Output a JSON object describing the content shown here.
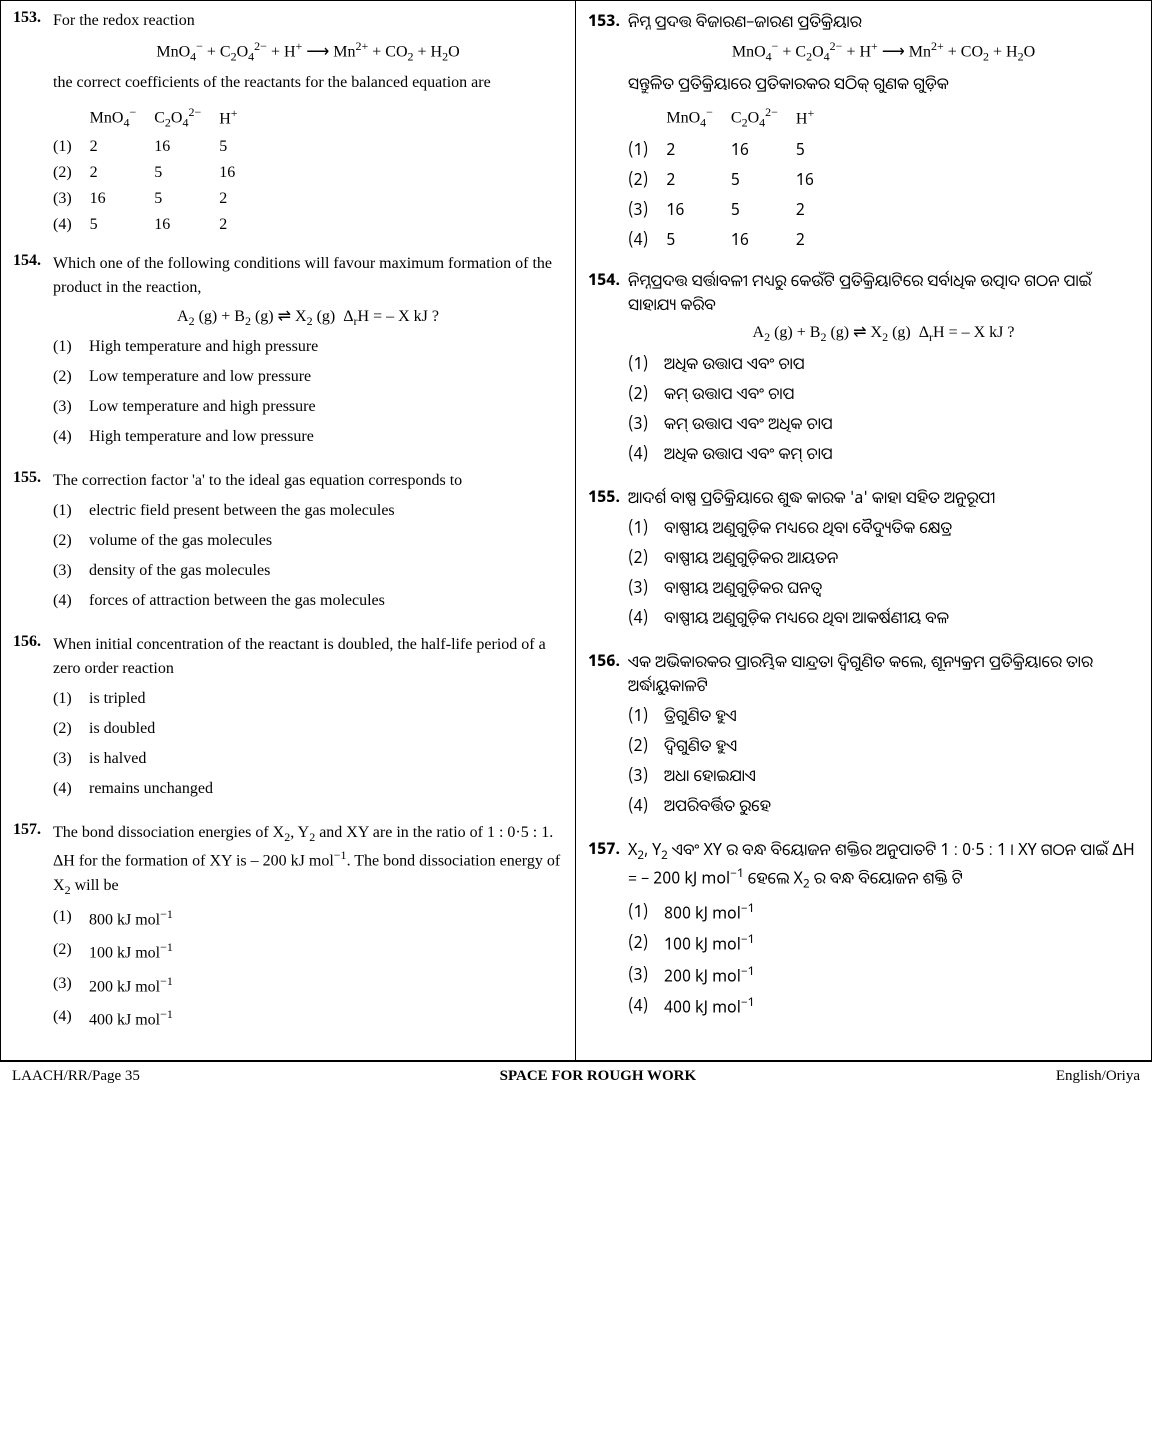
{
  "footer": {
    "left": "LAACH/RR/Page 35",
    "center": "SPACE FOR ROUGH WORK",
    "right": "English/Oriya"
  },
  "left": {
    "q153": {
      "num": "153.",
      "text1": "For the redox reaction",
      "eqn": "MnO<sub>4</sub><sup>−</sup> + C<sub>2</sub>O<sub>4</sub><sup>2−</sup> + H<sup>+</sup> ⟶ Mn<sup>2+</sup> + CO<sub>2</sub> + H<sub>2</sub>O",
      "text2": "the correct coefficients of the reactants for the balanced equation are",
      "headers": [
        "",
        "MnO<sub>4</sub><sup>−</sup>",
        "C<sub>2</sub>O<sub>4</sub><sup>2−</sup>",
        "H<sup>+</sup>"
      ],
      "rows": [
        [
          "(1)",
          "2",
          "16",
          "5"
        ],
        [
          "(2)",
          "2",
          "5",
          "16"
        ],
        [
          "(3)",
          "16",
          "5",
          "2"
        ],
        [
          "(4)",
          "5",
          "16",
          "2"
        ]
      ]
    },
    "q154": {
      "num": "154.",
      "text": "Which one of the following conditions will favour maximum formation of the product in the reaction,",
      "eqn": "A<sub>2</sub> (g) + B<sub>2</sub> (g) ⇌ X<sub>2</sub> (g)&nbsp;&nbsp;Δ<sub>r</sub>H = – X kJ ?",
      "opts": [
        {
          "n": "(1)",
          "t": "High temperature and high pressure"
        },
        {
          "n": "(2)",
          "t": "Low temperature and low pressure"
        },
        {
          "n": "(3)",
          "t": "Low temperature and high pressure"
        },
        {
          "n": "(4)",
          "t": "High temperature and low pressure"
        }
      ]
    },
    "q155": {
      "num": "155.",
      "text": "The correction factor 'a' to the ideal gas equation corresponds to",
      "opts": [
        {
          "n": "(1)",
          "t": "electric field present between the gas molecules"
        },
        {
          "n": "(2)",
          "t": "volume of the gas molecules"
        },
        {
          "n": "(3)",
          "t": "density of the gas molecules"
        },
        {
          "n": "(4)",
          "t": "forces of attraction between the gas molecules"
        }
      ]
    },
    "q156": {
      "num": "156.",
      "text": "When initial concentration of the reactant is doubled, the half-life period of a zero order reaction",
      "opts": [
        {
          "n": "(1)",
          "t": "is tripled"
        },
        {
          "n": "(2)",
          "t": "is doubled"
        },
        {
          "n": "(3)",
          "t": "is halved"
        },
        {
          "n": "(4)",
          "t": "remains unchanged"
        }
      ]
    },
    "q157": {
      "num": "157.",
      "text": "The bond dissociation energies of X<sub>2</sub>, Y<sub>2</sub> and XY are in the ratio of 1 : 0·5 : 1. ΔH for the formation of XY is – 200 kJ mol<sup>−1</sup>. The bond dissociation energy of X<sub>2</sub> will be",
      "opts": [
        {
          "n": "(1)",
          "t": "800 kJ mol<sup>−1</sup>"
        },
        {
          "n": "(2)",
          "t": "100 kJ mol<sup>−1</sup>"
        },
        {
          "n": "(3)",
          "t": "200 kJ mol<sup>−1</sup>"
        },
        {
          "n": "(4)",
          "t": "400 kJ mol<sup>−1</sup>"
        }
      ]
    }
  },
  "right": {
    "q153": {
      "num": "153.",
      "text1": "ନିମ୍ନ ପ୍ରଦତ୍ତ ବିଜାରଣ–ଜାରଣ ପ୍ରତିକ୍ରିୟାର",
      "eqn": "MnO<sub>4</sub><sup>−</sup> + C<sub>2</sub>O<sub>4</sub><sup>2−</sup> + H<sup>+</sup> ⟶ Mn<sup>2+</sup> + CO<sub>2</sub> + H<sub>2</sub>O",
      "text2": "ସନ୍ତୁଳିତ ପ୍ରତିକ୍ରିୟାରେ ପ୍ରତିକାରକର ସଠିକ୍ ଗୁଣକ ଗୁଡ଼ିକ",
      "headers": [
        "",
        "MnO<sub>4</sub><sup>−</sup>",
        "C<sub>2</sub>O<sub>4</sub><sup>2−</sup>",
        "H<sup>+</sup>"
      ],
      "rows": [
        [
          "(1)",
          "2",
          "16",
          "5"
        ],
        [
          "(2)",
          "2",
          "5",
          "16"
        ],
        [
          "(3)",
          "16",
          "5",
          "2"
        ],
        [
          "(4)",
          "5",
          "16",
          "2"
        ]
      ]
    },
    "q154": {
      "num": "154.",
      "text": "ନିମ୍ନପ୍ରଦତ୍ତ ସର୍ତ୍ତାବଳୀ ମଧ୍ୟରୁ କେଉଁଟି ପ୍ରତିକ୍ରିୟାଟିରେ ସର୍ବାଧିକ ଉତ୍ପାଦ ଗଠନ ପାଇଁ ସାହାଯ୍ୟ କରିବ",
      "eqn": "A<sub>2</sub> (g) + B<sub>2</sub> (g) ⇌ X<sub>2</sub> (g)&nbsp;&nbsp;Δ<sub>r</sub>H = – X kJ ?",
      "opts": [
        {
          "n": "(1)",
          "t": "ଅଧିକ ଉତ୍ତାପ ଏବଂ ଚାପ"
        },
        {
          "n": "(2)",
          "t": "କମ୍ ଉତ୍ତାପ ଏବଂ ଚାପ"
        },
        {
          "n": "(3)",
          "t": "କମ୍ ଉତ୍ତାପ ଏବଂ ଅଧିକ ଚାପ"
        },
        {
          "n": "(4)",
          "t": "ଅଧିକ ଉତ୍ତାପ ଏବଂ କମ୍ ଚାପ"
        }
      ]
    },
    "q155": {
      "num": "155.",
      "text": "ଆଦର୍ଶ ବାଷ୍ପ ପ୍ରତିକ୍ରିୟାରେ ଶୁଦ୍ଧ କାରକ 'a' କାହା ସହିତ ଅନୁରୂପୀ",
      "opts": [
        {
          "n": "(1)",
          "t": "ବାଷ୍ପୀୟ ଅଣୁଗୁଡ଼ିକ ମଧ୍ୟରେ ଥିବା ବୈଦ୍ୟୁତିକ କ୍ଷେତ୍ର"
        },
        {
          "n": "(2)",
          "t": "ବାଷ୍ପୀୟ ଅଣୁଗୁଡ଼ିକର ଆୟତନ"
        },
        {
          "n": "(3)",
          "t": "ବାଷ୍ପୀୟ ଅଣୁଗୁଡ଼ିକର ଘନତ୍ୱ"
        },
        {
          "n": "(4)",
          "t": "ବାଷ୍ପୀୟ ଅଣୁଗୁଡ଼ିକ ମଧ୍ୟରେ ଥିବା ଆକର୍ଷଣୀୟ ବଳ"
        }
      ]
    },
    "q156": {
      "num": "156.",
      "text": "ଏକ ଅଭିକାରକର ପ୍ରାରମ୍ଭିକ ସାନ୍ଦ୍ରତା ଦ୍ୱିଗୁଣିତ କଲେ, ଶୂନ୍ୟକ୍ରମ ପ୍ରତିକ୍ରିୟାରେ ତାର ଅର୍ଦ୍ଧାୟୁକାଳଟି",
      "opts": [
        {
          "n": "(1)",
          "t": "ତ୍ରିଗୁଣିତ ହୁଏ"
        },
        {
          "n": "(2)",
          "t": "ଦ୍ୱିଗୁଣିତ ହୁଏ"
        },
        {
          "n": "(3)",
          "t": "ଅଧା ହୋଇଯାଏ"
        },
        {
          "n": "(4)",
          "t": "ଅପରିବର୍ତ୍ତିତ ରୁହେ"
        }
      ]
    },
    "q157": {
      "num": "157.",
      "text": "X<sub>2</sub>, Y<sub>2</sub> ଏବଂ XY ର ବନ୍ଧ ବିୟୋଜନ ଶକ୍ତିର ଅନୁପାତଟି 1 : 0·5 : 1 । XY ଗଠନ ପାଇଁ ΔH = – 200 kJ mol<sup>−1</sup> ହେଲେ X<sub>2</sub> ର ବନ୍ଧ ବିୟୋଜନ ଶକ୍ତି ଟି",
      "opts": [
        {
          "n": "(1)",
          "t": "800 kJ mol<sup>−1</sup>"
        },
        {
          "n": "(2)",
          "t": "100 kJ mol<sup>−1</sup>"
        },
        {
          "n": "(3)",
          "t": "200 kJ mol<sup>−1</sup>"
        },
        {
          "n": "(4)",
          "t": "400 kJ mol<sup>−1</sup>"
        }
      ]
    }
  }
}
